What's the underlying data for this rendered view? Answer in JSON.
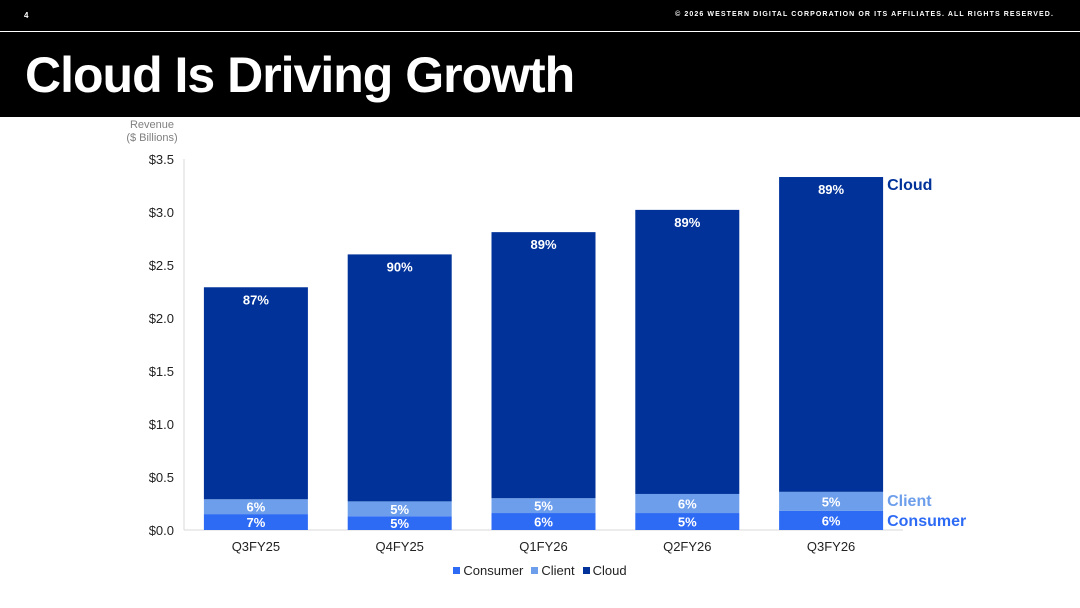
{
  "header": {
    "page_number": "4",
    "copyright": "© 2026 WESTERN DIGITAL CORPORATION OR ITS AFFILIATES. ALL RIGHTS RESERVED.",
    "title": "Cloud Is Driving Growth"
  },
  "colors": {
    "header_bg": "#000000",
    "consumer": "#2E6BF5",
    "client": "#6D9EEB",
    "cloud": "#00329A"
  },
  "chart_data": {
    "type": "bar",
    "stacked": true,
    "ylabel": [
      "Revenue",
      "($ Billions)"
    ],
    "ylim": [
      0,
      3.5
    ],
    "yticks": [
      "$0.0",
      "$0.5",
      "$1.0",
      "$1.5",
      "$2.0",
      "$2.5",
      "$3.0",
      "$3.5"
    ],
    "ytick_values": [
      0,
      0.5,
      1.0,
      1.5,
      2.0,
      2.5,
      3.0,
      3.5
    ],
    "grid": false,
    "legend_position": "bottom",
    "categories": [
      "Q3FY25",
      "Q4FY25",
      "Q1FY26",
      "Q2FY26",
      "Q3FY26"
    ],
    "series": [
      {
        "name": "Consumer",
        "values": [
          0.15,
          0.13,
          0.16,
          0.16,
          0.18
        ],
        "labels": [
          "7%",
          "5%",
          "6%",
          "5%",
          "6%"
        ]
      },
      {
        "name": "Client",
        "values": [
          0.14,
          0.14,
          0.14,
          0.18,
          0.18
        ],
        "labels": [
          "6%",
          "5%",
          "5%",
          "6%",
          "5%"
        ]
      },
      {
        "name": "Cloud",
        "values": [
          2.0,
          2.33,
          2.51,
          2.68,
          2.97
        ],
        "labels": [
          "87%",
          "90%",
          "89%",
          "89%",
          "89%"
        ]
      }
    ],
    "series_end_labels": {
      "Cloud": "Cloud",
      "Client": "Client",
      "Consumer": "Consumer"
    }
  }
}
